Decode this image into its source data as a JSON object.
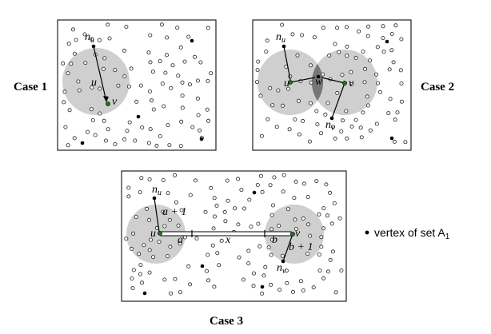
{
  "cases": {
    "case1": {
      "label": "Case 1"
    },
    "case2": {
      "label": "Case 2"
    },
    "case3": {
      "label": "Case 3"
    }
  },
  "symbols": {
    "n": "n",
    "u": "u",
    "v": "v",
    "w": "w",
    "x": "x",
    "a": "a",
    "b": "b",
    "a_plus_1": "a + 1",
    "b_plus_1": "b + 1"
  },
  "legend": {
    "text": "vertex of set A",
    "subscript": "1"
  },
  "colors": {
    "disk": "#cfcfcf",
    "lens": "#777777",
    "special_vertex": "#1a7a1a",
    "set_a1_vertex": "#000000"
  }
}
